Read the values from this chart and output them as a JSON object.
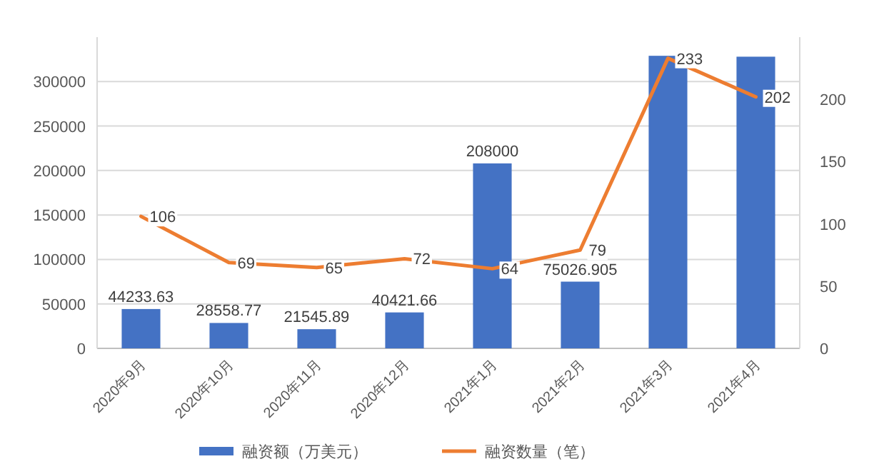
{
  "chart_data": {
    "type": "bar",
    "categories": [
      "2020年9月",
      "2020年10月",
      "2020年11月",
      "2020年12月",
      "2021年1月",
      "2021年2月",
      "2021年3月",
      "2021年4月"
    ],
    "series": [
      {
        "name": "融资额（万美元）",
        "color": "#4472c4",
        "values": [
          44233.63,
          28558.77,
          21545.89,
          40421.66,
          208000,
          75026.905,
          329000,
          328000
        ],
        "value_labels": [
          "44233.63",
          "28558.77",
          "21545.89",
          "40421.66",
          "208000",
          "75026.905",
          null,
          null
        ]
      },
      {
        "name": "融资数量（笔）",
        "type": "line",
        "axis": "y2",
        "color": "#ed7d31",
        "values": [
          106,
          69,
          65,
          72,
          64,
          79,
          233,
          202
        ],
        "value_labels": [
          "106",
          "69",
          "65",
          "72",
          "64",
          "79",
          "233",
          "202"
        ]
      }
    ],
    "ylim": [
      0,
      350000
    ],
    "yticks": [
      0,
      50000,
      100000,
      150000,
      200000,
      250000,
      300000
    ],
    "y2lim": [
      0,
      250
    ],
    "y2ticks": [
      0,
      50,
      100,
      150,
      200
    ],
    "grid": "y",
    "legend": "bottom",
    "marker": "none",
    "line_style": "solid"
  }
}
